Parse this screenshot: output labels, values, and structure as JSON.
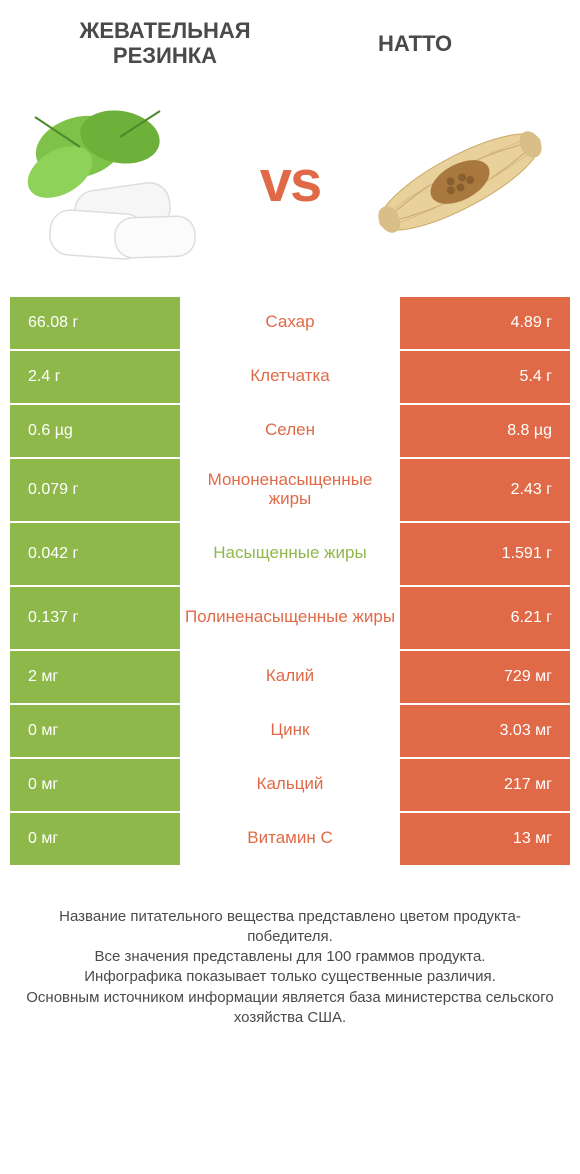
{
  "colors": {
    "green": "#8eb94a",
    "orange": "#e06a47",
    "text": "#4a4a4a",
    "white": "#ffffff"
  },
  "header": {
    "left_title": "ЖЕВАТЕЛЬНАЯ РЕЗИНКА",
    "right_title": "НАТТО",
    "vs_label": "vs"
  },
  "table": {
    "type": "comparison-table",
    "left_bg": "#8eb94a",
    "right_bg": "#e06a47",
    "value_text_color": "#ffffff",
    "label_fontsize": 17,
    "value_fontsize": 16,
    "rows": [
      {
        "label": "Сахар",
        "left": "66.08 г",
        "right": "4.89 г",
        "winner": "right",
        "tall": false
      },
      {
        "label": "Клетчатка",
        "left": "2.4 г",
        "right": "5.4 г",
        "winner": "right",
        "tall": false
      },
      {
        "label": "Селен",
        "left": "0.6 µg",
        "right": "8.8 µg",
        "winner": "right",
        "tall": false
      },
      {
        "label": "Мононенасыщенные жиры",
        "left": "0.079 г",
        "right": "2.43 г",
        "winner": "right",
        "tall": true
      },
      {
        "label": "Насыщенные жиры",
        "left": "0.042 г",
        "right": "1.591 г",
        "winner": "left",
        "tall": true
      },
      {
        "label": "Полиненасыщенные жиры",
        "left": "0.137 г",
        "right": "6.21 г",
        "winner": "right",
        "tall": true
      },
      {
        "label": "Калий",
        "left": "2 мг",
        "right": "729 мг",
        "winner": "right",
        "tall": false
      },
      {
        "label": "Цинк",
        "left": "0 мг",
        "right": "3.03 мг",
        "winner": "right",
        "tall": false
      },
      {
        "label": "Кальций",
        "left": "0 мг",
        "right": "217 мг",
        "winner": "right",
        "tall": false
      },
      {
        "label": "Витамин C",
        "left": "0 мг",
        "right": "13 мг",
        "winner": "right",
        "tall": false
      }
    ]
  },
  "footnote": {
    "lines": [
      "Название питательного вещества представлено цветом продукта-победителя.",
      "Все значения представлены для 100 граммов продукта.",
      "Инфографика показывает только существенные различия.",
      "Основным источником информации является база министерства сельского хозяйства США."
    ]
  }
}
